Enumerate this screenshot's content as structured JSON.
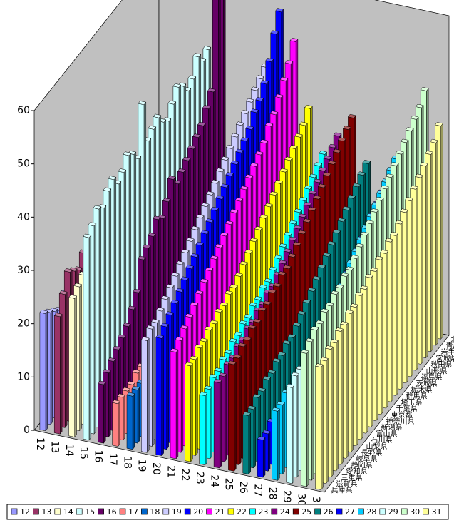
{
  "chart_data": {
    "type": "bar3d",
    "categories": [
      "北海道",
      "青森県",
      "岩手県",
      "宮城県",
      "秋田県",
      "山形県",
      "福島県",
      "茨城県",
      "栃木県",
      "群馬県",
      "埼玉県",
      "千葉県",
      "東京都",
      "神奈川県",
      "新潟県",
      "富山県",
      "石川県",
      "山梨県",
      "長野県",
      "岐阜県",
      "静岡県",
      "愛知県",
      "三重県",
      "滋賀県",
      "兵庫県"
    ],
    "ylim": [
      0,
      60
    ],
    "yticks": [
      0,
      10,
      20,
      30,
      40,
      50,
      60
    ],
    "legend": "bottom",
    "series": [
      {
        "name": "12",
        "color": "#9999ff",
        "values": [
          18,
          19,
          17,
          20,
          19,
          21,
          18,
          20,
          19,
          22,
          20,
          21,
          19,
          20,
          18,
          21,
          20,
          19,
          22,
          20,
          21,
          19,
          20,
          21,
          22
        ]
      },
      {
        "name": "13",
        "color": "#993366",
        "values": [
          30,
          28,
          29,
          27,
          31,
          30,
          28,
          26,
          29,
          27,
          30,
          28,
          27,
          29,
          26,
          28,
          30,
          27,
          29,
          28,
          26,
          27,
          28,
          25,
          22
        ]
      },
      {
        "name": "14",
        "color": "#ffffcc",
        "values": [
          32,
          30,
          31,
          29,
          33,
          30,
          31,
          28,
          30,
          29,
          31,
          30,
          28,
          30,
          29,
          31,
          30,
          29,
          28,
          30,
          27,
          29,
          28,
          27,
          26
        ]
      },
      {
        "name": "15",
        "color": "#ccffff",
        "values": [
          45,
          44,
          46,
          43,
          42,
          44,
          45,
          43,
          41,
          42,
          44,
          43,
          42,
          50,
          41,
          43,
          44,
          42,
          41,
          43,
          42,
          40,
          41,
          39,
          38
        ]
      },
      {
        "name": "16",
        "color": "#660066",
        "values": [
          60,
          58,
          40,
          38,
          36,
          35,
          34,
          33,
          32,
          31,
          33,
          30,
          28,
          29,
          27,
          26,
          25,
          20,
          18,
          16,
          15,
          14,
          13,
          12,
          11
        ]
      },
      {
        "name": "17",
        "color": "#ff8080",
        "values": [
          28,
          26,
          25,
          24,
          23,
          22,
          21,
          20,
          19,
          18,
          17,
          16,
          15,
          14,
          13,
          12,
          11,
          10,
          10,
          9,
          9,
          8,
          8,
          8,
          8
        ]
      },
      {
        "name": "18",
        "color": "#0066cc",
        "values": [
          30,
          29,
          28,
          27,
          26,
          25,
          24,
          23,
          22,
          21,
          20,
          19,
          18,
          17,
          16,
          15,
          14,
          13,
          12,
          11,
          11,
          10,
          10,
          10,
          10
        ]
      },
      {
        "name": "19",
        "color": "#ccccff",
        "values": [
          44,
          43,
          42,
          41,
          40,
          39,
          38,
          37,
          36,
          35,
          34,
          33,
          32,
          31,
          30,
          29,
          28,
          27,
          26,
          25,
          24,
          23,
          22,
          22,
          21
        ]
      },
      {
        "name": "20",
        "color": "#0000ff",
        "values": [
          55,
          52,
          48,
          45,
          43,
          42,
          40,
          39,
          38,
          37,
          36,
          35,
          34,
          33,
          32,
          31,
          30,
          29,
          28,
          27,
          26,
          25,
          24,
          23,
          22
        ]
      },
      {
        "name": "21",
        "color": "#ff00ff",
        "values": [
          50,
          47,
          45,
          43,
          41,
          40,
          38,
          37,
          36,
          35,
          34,
          33,
          32,
          31,
          30,
          29,
          28,
          27,
          26,
          25,
          24,
          23,
          22,
          21,
          20
        ]
      },
      {
        "name": "22",
        "color": "#ffff00",
        "values": [
          38,
          36,
          35,
          34,
          33,
          32,
          31,
          30,
          29,
          28,
          27,
          26,
          25,
          24,
          23,
          22,
          22,
          21,
          21,
          20,
          20,
          19,
          19,
          18,
          18
        ]
      },
      {
        "name": "23",
        "color": "#00ffff",
        "values": [
          30,
          29,
          28,
          27,
          26,
          25,
          24,
          23,
          22,
          21,
          20,
          19,
          19,
          18,
          18,
          17,
          17,
          16,
          16,
          15,
          15,
          14,
          14,
          13,
          13
        ]
      },
      {
        "name": "24",
        "color": "#800080",
        "values": [
          34,
          33,
          32,
          31,
          30,
          29,
          28,
          27,
          26,
          25,
          24,
          23,
          22,
          21,
          21,
          20,
          20,
          19,
          19,
          18,
          18,
          17,
          17,
          16,
          16
        ]
      },
      {
        "name": "25",
        "color": "#800000",
        "values": [
          38,
          37,
          36,
          35,
          34,
          33,
          32,
          31,
          30,
          29,
          28,
          27,
          26,
          25,
          25,
          24,
          24,
          23,
          23,
          22,
          22,
          21,
          21,
          20,
          20
        ]
      },
      {
        "name": "26",
        "color": "#008080",
        "values": [
          30,
          29,
          28,
          27,
          26,
          25,
          24,
          23,
          22,
          21,
          20,
          19,
          18,
          17,
          16,
          15,
          15,
          14,
          14,
          13,
          13,
          12,
          12,
          11,
          11
        ]
      },
      {
        "name": "27",
        "color": "#0000ff",
        "values": [
          25,
          24,
          23,
          22,
          21,
          20,
          19,
          18,
          17,
          16,
          15,
          14,
          13,
          12,
          11,
          10,
          10,
          9,
          9,
          9,
          8,
          8,
          8,
          7,
          7
        ]
      },
      {
        "name": "28",
        "color": "#00ccff",
        "values": [
          32,
          31,
          30,
          29,
          28,
          27,
          26,
          25,
          24,
          23,
          22,
          21,
          20,
          19,
          18,
          17,
          17,
          16,
          16,
          15,
          15,
          14,
          14,
          13,
          13
        ]
      },
      {
        "name": "29",
        "color": "#ccffff",
        "values": [
          36,
          35,
          34,
          33,
          32,
          31,
          30,
          29,
          28,
          27,
          26,
          25,
          24,
          24,
          23,
          23,
          22,
          22,
          21,
          21,
          20,
          20,
          19,
          19,
          18
        ]
      },
      {
        "name": "30",
        "color": "#ccffcc",
        "values": [
          46,
          44,
          43,
          42,
          41,
          40,
          39,
          38,
          37,
          36,
          35,
          34,
          33,
          32,
          31,
          30,
          30,
          29,
          29,
          28,
          28,
          27,
          27,
          26,
          25
        ]
      },
      {
        "name": "31",
        "color": "#ffff99",
        "values": [
          40,
          38,
          37,
          36,
          35,
          34,
          33,
          32,
          31,
          30,
          30,
          29,
          29,
          28,
          28,
          27,
          27,
          26,
          26,
          25,
          25,
          24,
          24,
          23,
          23
        ]
      }
    ]
  }
}
